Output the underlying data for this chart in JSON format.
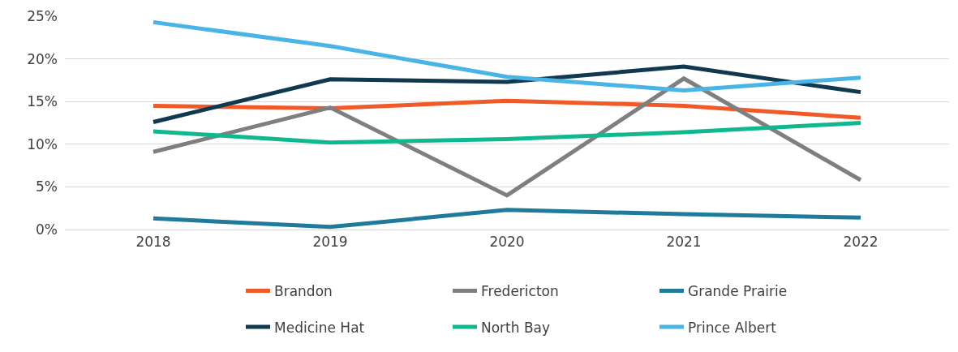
{
  "chart_data": {
    "type": "line",
    "categories": [
      "2018",
      "2019",
      "2020",
      "2021",
      "2022"
    ],
    "series": [
      {
        "name": "Brandon",
        "color": "#f05a28",
        "values": [
          14.5,
          14.2,
          15.1,
          14.5,
          13.1
        ]
      },
      {
        "name": "Fredericton",
        "color": "#7f7f7f",
        "values": [
          9.1,
          14.3,
          4.0,
          17.7,
          5.8
        ]
      },
      {
        "name": "Grande Prairie",
        "color": "#1f7a9c",
        "values": [
          1.3,
          0.3,
          2.3,
          1.8,
          1.4
        ]
      },
      {
        "name": "Medicine Hat",
        "color": "#10394f",
        "values": [
          12.6,
          17.6,
          17.3,
          19.1,
          16.1
        ]
      },
      {
        "name": "North Bay",
        "color": "#10b88f",
        "values": [
          11.5,
          10.2,
          10.6,
          11.4,
          12.5
        ]
      },
      {
        "name": "Prince Albert",
        "color": "#4ab4e6",
        "values": [
          24.3,
          21.5,
          17.9,
          16.3,
          17.8
        ]
      }
    ],
    "ylim": [
      0,
      25
    ],
    "yticks": [
      {
        "value": 0,
        "label": "0%"
      },
      {
        "value": 5,
        "label": "5%"
      },
      {
        "value": 10,
        "label": "10%"
      },
      {
        "value": 15,
        "label": "15%"
      },
      {
        "value": 20,
        "label": "20%"
      },
      {
        "value": 25,
        "label": "25%"
      }
    ],
    "grid": "y",
    "legend": "bottom",
    "marker": "none",
    "line_style": "solid"
  }
}
